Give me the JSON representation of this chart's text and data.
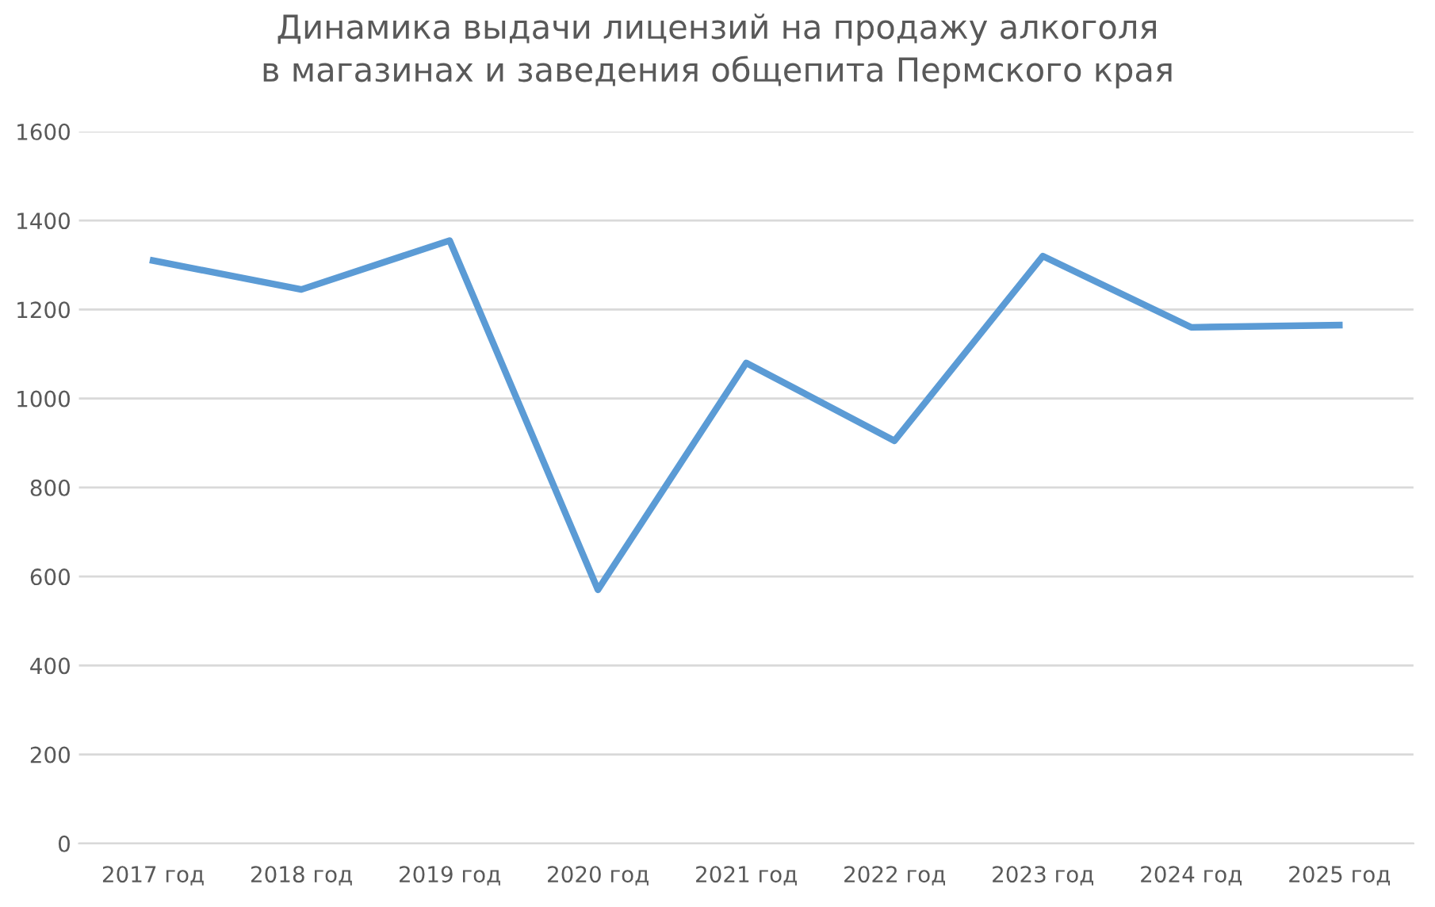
{
  "chart_data": {
    "type": "line",
    "title": "Динамика выдачи лицензий на продажу алкоголя\nв магазинах и заведения общепита Пермского края",
    "categories": [
      "2017 год",
      "2018 год",
      "2019 год",
      "2020 год",
      "2021 год",
      "2022 год",
      "2023 год",
      "2024 год",
      "2025 год"
    ],
    "series": [
      {
        "color": "#5b9bd5",
        "values": [
          1310,
          1245,
          1355,
          570,
          1080,
          905,
          1320,
          1160,
          1165
        ]
      }
    ],
    "ylim": [
      0,
      1600
    ],
    "yticks": [
      0,
      200,
      400,
      600,
      800,
      1000,
      1200,
      1400,
      1600
    ],
    "grid": "y",
    "legend": false,
    "marker": "none",
    "line_style": "solid"
  }
}
